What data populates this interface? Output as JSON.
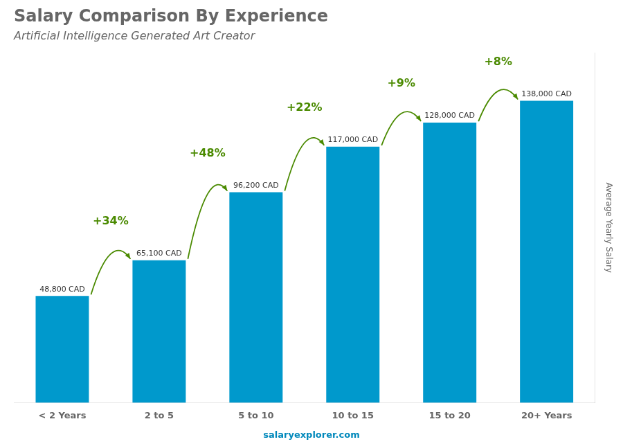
{
  "chart_data": {
    "type": "bar",
    "title": "Salary Comparison By Experience",
    "subtitle": "Artificial Intelligence Generated Art Creator",
    "categories": [
      "< 2 Years",
      "2 to 5",
      "5 to 10",
      "10 to 15",
      "15 to 20",
      "20+ Years"
    ],
    "values": [
      48800,
      65100,
      96200,
      117000,
      128000,
      138000
    ],
    "value_labels": [
      "48,800 CAD",
      "65,100 CAD",
      "96,200 CAD",
      "117,000 CAD",
      "128,000 CAD",
      "138,000 CAD"
    ],
    "data_labels": true,
    "color": "#0099cc",
    "ylabel": "Average Yearly Salary",
    "ylim": [
      0,
      160000
    ],
    "tick_labels": "x",
    "grid": false,
    "annotations": [
      "+34%",
      "+48%",
      "+22%",
      "+9%",
      "+8%"
    ],
    "source": "salaryexplorer.com"
  }
}
